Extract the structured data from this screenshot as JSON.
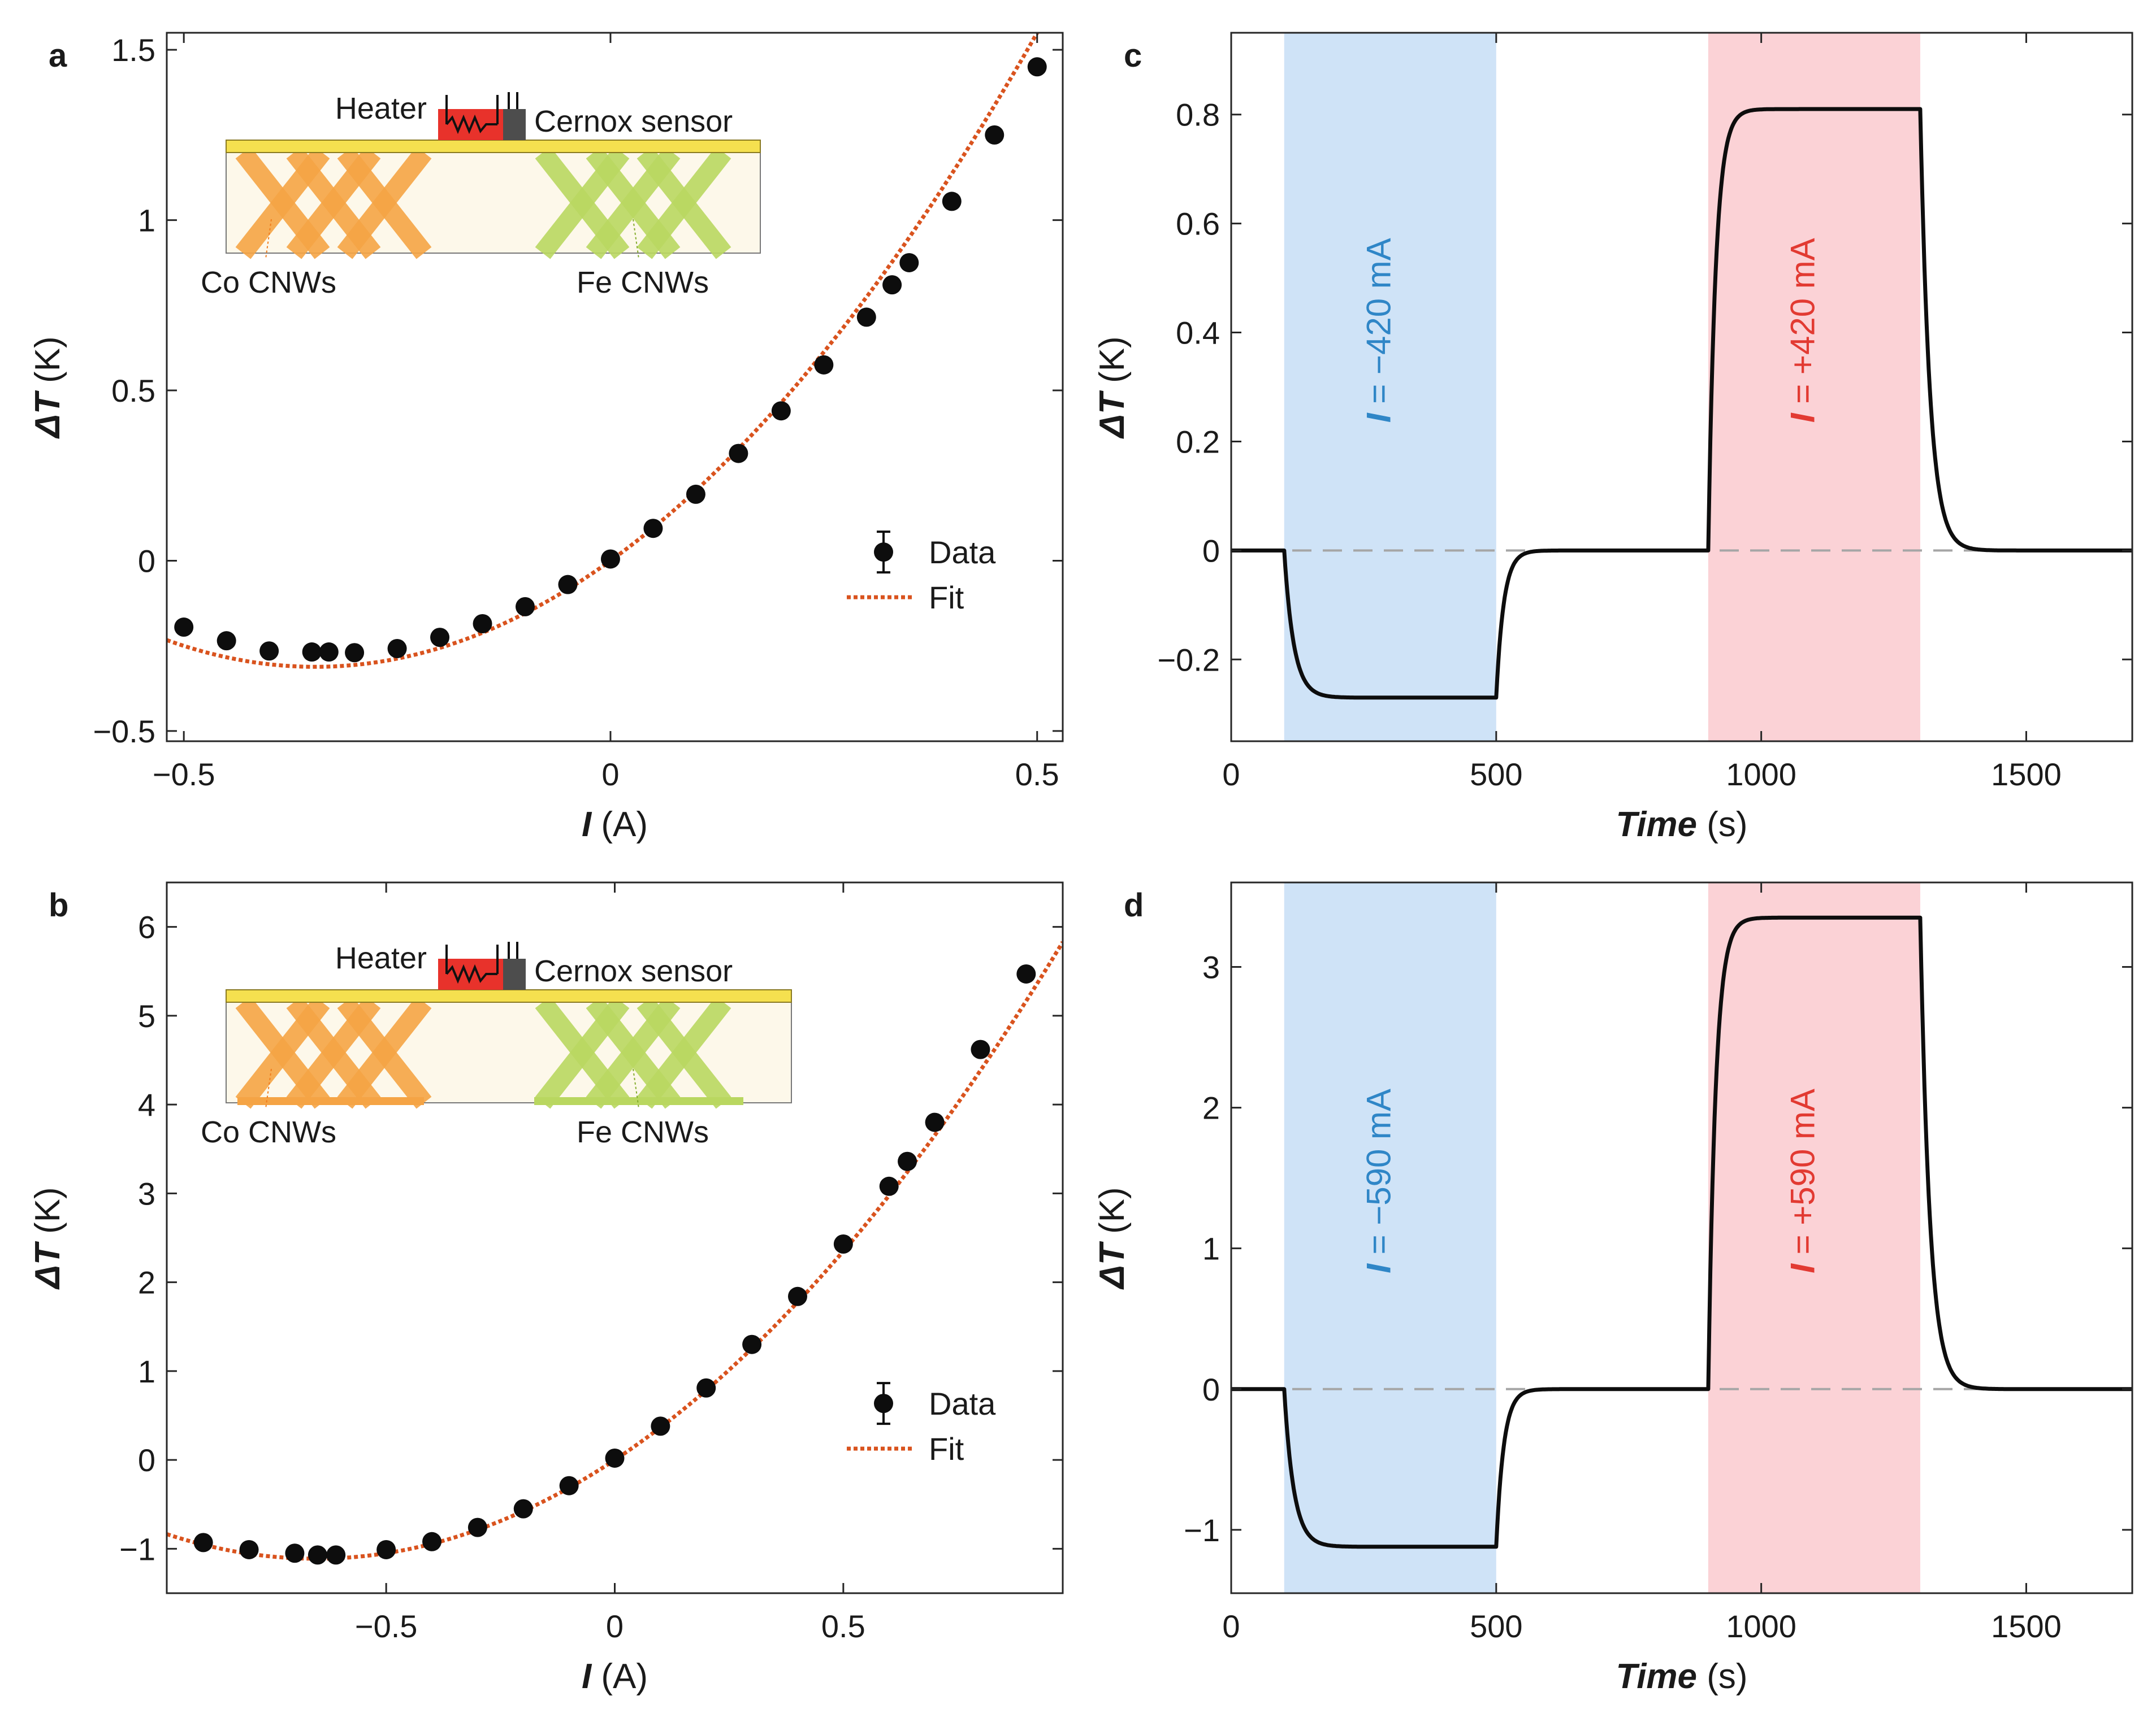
{
  "figure": {
    "colors": {
      "data": "#0d0d0d",
      "fit": "#d9531e",
      "trace": "#0d0d0d",
      "zero_line": "#a6a6a6",
      "band_negative": "#cfe3f7",
      "band_positive": "#fbd2d6",
      "band_label_negative": "#2f86c7",
      "band_label_positive": "#e23a32",
      "heater": "#e8322b",
      "sensor": "#4d4d4d",
      "stripe": "#f5e04f",
      "substrate": "#fdf8ea",
      "co_wire": "#f5a445",
      "fe_wire": "#b9d760",
      "co_label": "#f07d1e",
      "fe_label": "#84ac2c"
    }
  },
  "chart_data": [
    {
      "panel": "a",
      "type": "scatter",
      "title": "",
      "xlabel": {
        "symbol": "I",
        "unit": " (A)"
      },
      "ylabel": {
        "symbol": "ΔT",
        "unit": " (K)"
      },
      "xlim": [
        -0.52,
        0.53
      ],
      "ylim": [
        -0.53,
        1.55
      ],
      "xticks": [
        -0.5,
        0,
        0.5
      ],
      "xtick_labels": [
        "−0.5",
        "0",
        "0.5"
      ],
      "yticks": [
        -0.5,
        0,
        0.5,
        1,
        1.5
      ],
      "ytick_labels": [
        "−0.5",
        "0",
        "0.5",
        "1",
        "1.5"
      ],
      "grid": false,
      "legend": {
        "position": "right-middle",
        "entries": [
          "Data",
          "Fit"
        ]
      },
      "series": [
        {
          "name": "Data",
          "x": [
            -0.5,
            -0.45,
            -0.4,
            -0.35,
            -0.33,
            -0.3,
            -0.25,
            -0.2,
            -0.15,
            -0.1,
            -0.05,
            0,
            0.05,
            0.1,
            0.15,
            0.2,
            0.25,
            0.3,
            0.33,
            0.35,
            0.4,
            0.45,
            0.5
          ],
          "y": [
            -0.195,
            -0.235,
            -0.265,
            -0.268,
            -0.268,
            -0.27,
            -0.258,
            -0.225,
            -0.185,
            -0.135,
            -0.07,
            0.005,
            0.095,
            0.195,
            0.315,
            0.44,
            0.575,
            0.715,
            0.81,
            0.875,
            1.055,
            1.25,
            1.45
          ]
        },
        {
          "name": "Fit",
          "model": "quadratic",
          "coefficients": {
            "a": 2.6,
            "b": 1.8,
            "c": 0
          },
          "x_range": [
            -0.52,
            0.53
          ]
        }
      ],
      "inset": {
        "labels": {
          "heater": "Heater",
          "sensor": "Cernox sensor",
          "co": "Co CNWs",
          "fe": "Fe CNWs"
        }
      }
    },
    {
      "panel": "b",
      "type": "scatter",
      "title": "",
      "xlabel": {
        "symbol": "I",
        "unit": " (A)"
      },
      "ylabel": {
        "symbol": "ΔT",
        "unit": " (K)"
      },
      "xlim": [
        -0.98,
        0.98
      ],
      "ylim": [
        -1.5,
        6.5
      ],
      "xticks": [
        -0.5,
        0,
        0.5
      ],
      "xtick_labels": [
        "−0.5",
        "0",
        "0.5"
      ],
      "yticks": [
        -1,
        0,
        1,
        2,
        3,
        4,
        5,
        6
      ],
      "ytick_labels": [
        "−1",
        "0",
        "1",
        "2",
        "3",
        "4",
        "5",
        "6"
      ],
      "grid": false,
      "legend": {
        "position": "right-middle",
        "entries": [
          "Data",
          "Fit"
        ]
      },
      "series": [
        {
          "name": "Data",
          "x": [
            -0.9,
            -0.8,
            -0.7,
            -0.65,
            -0.61,
            -0.5,
            -0.4,
            -0.3,
            -0.2,
            -0.1,
            0,
            0.1,
            0.2,
            0.3,
            0.4,
            0.5,
            0.6,
            0.64,
            0.7,
            0.8,
            0.9
          ],
          "y": [
            -0.93,
            -1.01,
            -1.05,
            -1.07,
            -1.07,
            -1.01,
            -0.92,
            -0.76,
            -0.55,
            -0.29,
            0.02,
            0.38,
            0.81,
            1.3,
            1.84,
            2.43,
            3.08,
            3.36,
            3.8,
            4.62,
            5.47
          ]
        },
        {
          "name": "Fit",
          "model": "quadratic",
          "coefficients": {
            "a": 2.6,
            "b": 3.4,
            "c": 0
          },
          "x_range": [
            -0.98,
            0.98
          ]
        }
      ],
      "inset": {
        "labels": {
          "heater": "Heater",
          "sensor": "Cernox sensor",
          "co": "Co CNWs",
          "fe": "Fe CNWs"
        }
      }
    },
    {
      "panel": "c",
      "type": "line",
      "title": "",
      "xlabel": {
        "symbol": "Time",
        "unit": " (s)"
      },
      "ylabel": {
        "symbol": "ΔT",
        "unit": " (K)"
      },
      "xlim": [
        0,
        1700
      ],
      "ylim": [
        -0.35,
        0.95
      ],
      "xticks": [
        0,
        500,
        1000,
        1500
      ],
      "xtick_labels": [
        "0",
        "500",
        "1000",
        "1500"
      ],
      "yticks": [
        -0.2,
        0,
        0.2,
        0.4,
        0.6,
        0.8
      ],
      "ytick_labels": [
        "−0.2",
        "0",
        "0.2",
        "0.4",
        "0.6",
        "0.8"
      ],
      "grid": false,
      "bands": [
        {
          "x": [
            100,
            500
          ],
          "tone": "negative",
          "symbol": "I",
          "text": " = −420 mA"
        },
        {
          "x": [
            900,
            1300
          ],
          "tone": "positive",
          "symbol": "I",
          "text": " = +420 mA"
        }
      ],
      "reference_line": 0,
      "series": [
        {
          "name": "ΔT",
          "model": "step-response",
          "x_range": [
            0,
            1700
          ],
          "steps": [
            {
              "t_on": 100,
              "t_off": 500,
              "level": -0.27,
              "tau_rise": 18,
              "tau_fall": 14
            },
            {
              "t_on": 900,
              "t_off": 1300,
              "level": 0.81,
              "tau_rise": 14,
              "tau_fall": 18
            }
          ],
          "levels": [
            0,
            -0.27,
            0,
            0.81,
            0
          ]
        }
      ]
    },
    {
      "panel": "d",
      "type": "line",
      "title": "",
      "xlabel": {
        "symbol": "Time",
        "unit": " (s)"
      },
      "ylabel": {
        "symbol": "ΔT",
        "unit": " (K)"
      },
      "xlim": [
        0,
        1700
      ],
      "ylim": [
        -1.45,
        3.6
      ],
      "xticks": [
        0,
        500,
        1000,
        1500
      ],
      "xtick_labels": [
        "0",
        "500",
        "1000",
        "1500"
      ],
      "yticks": [
        -1,
        0,
        1,
        2,
        3
      ],
      "ytick_labels": [
        "−1",
        "0",
        "1",
        "2",
        "3"
      ],
      "grid": false,
      "bands": [
        {
          "x": [
            100,
            500
          ],
          "tone": "negative",
          "symbol": "I",
          "text": " = −590 mA"
        },
        {
          "x": [
            900,
            1300
          ],
          "tone": "positive",
          "symbol": "I",
          "text": " = +590 mA"
        }
      ],
      "reference_line": 0,
      "series": [
        {
          "name": "ΔT",
          "model": "step-response",
          "x_range": [
            0,
            1700
          ],
          "steps": [
            {
              "t_on": 100,
              "t_off": 500,
              "level": -1.12,
              "tau_rise": 18,
              "tau_fall": 14
            },
            {
              "t_on": 900,
              "t_off": 1300,
              "level": 3.35,
              "tau_rise": 14,
              "tau_fall": 18
            }
          ],
          "levels": [
            0,
            -1.12,
            0,
            3.35,
            0
          ]
        }
      ]
    }
  ]
}
